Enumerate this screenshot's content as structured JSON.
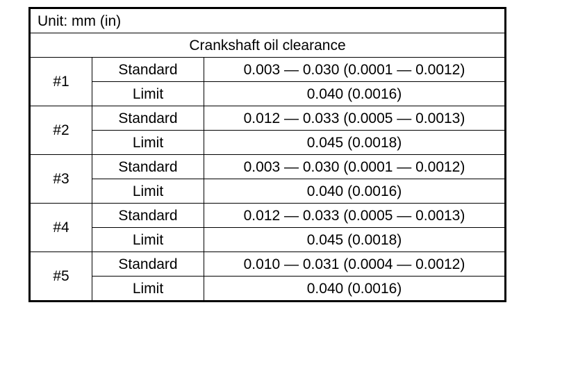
{
  "unit": "Unit: mm (in)",
  "title": "Crankshaft oil clearance",
  "groups": [
    {
      "journal": "#1",
      "entries": [
        {
          "label": "Standard",
          "value": "0.003 — 0.030 (0.0001 — 0.0012)"
        },
        {
          "label": "Limit",
          "value": "0.040 (0.0016)"
        }
      ]
    },
    {
      "journal": "#2",
      "entries": [
        {
          "label": "Standard",
          "value": "0.012 — 0.033 (0.0005 — 0.0013)"
        },
        {
          "label": "Limit",
          "value": "0.045 (0.0018)"
        }
      ]
    },
    {
      "journal": "#3",
      "entries": [
        {
          "label": "Standard",
          "value": "0.003 — 0.030 (0.0001 — 0.0012)"
        },
        {
          "label": "Limit",
          "value": "0.040 (0.0016)"
        }
      ]
    },
    {
      "journal": "#4",
      "entries": [
        {
          "label": "Standard",
          "value": "0.012 — 0.033 (0.0005 — 0.0013)"
        },
        {
          "label": "Limit",
          "value": "0.045 (0.0018)"
        }
      ]
    },
    {
      "journal": "#5",
      "entries": [
        {
          "label": "Standard",
          "value": "0.010 — 0.031 (0.0004 — 0.0012)"
        },
        {
          "label": "Limit",
          "value": "0.040 (0.0016)"
        }
      ]
    }
  ]
}
